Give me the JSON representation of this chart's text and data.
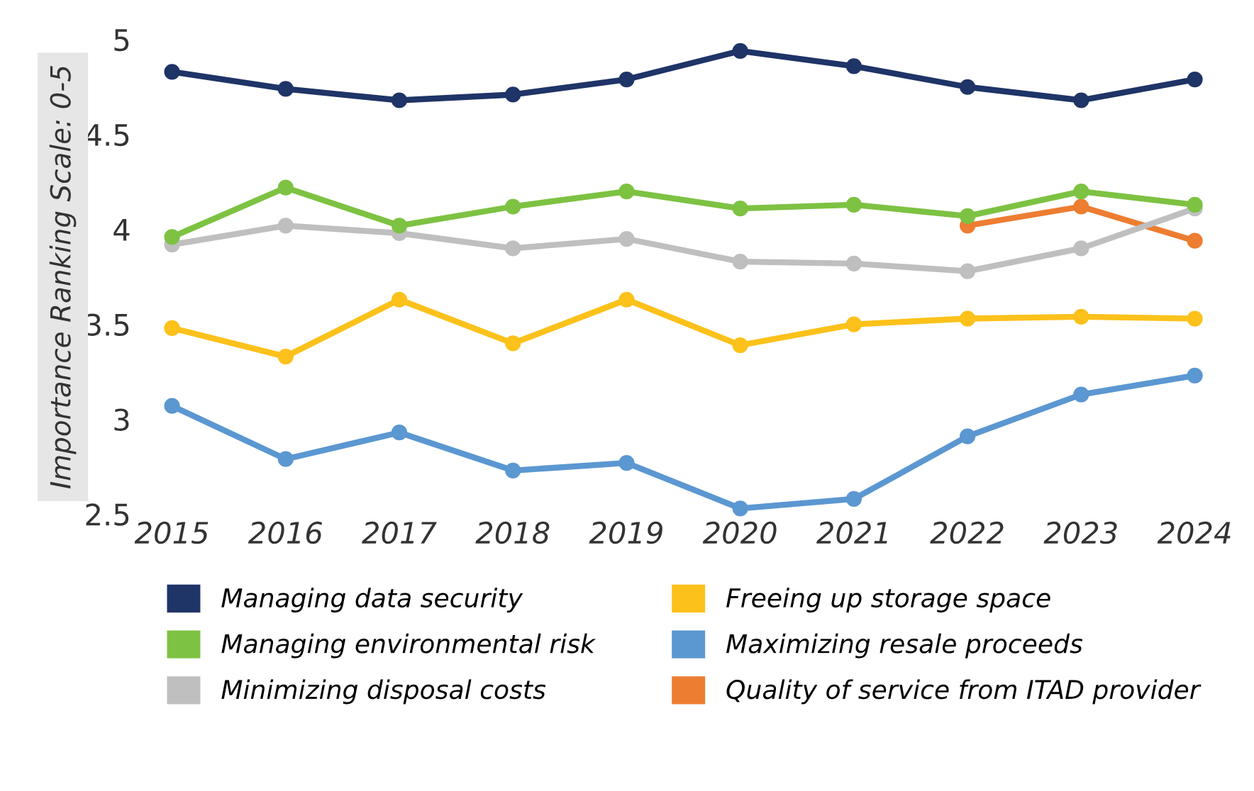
{
  "chart_data": {
    "type": "line",
    "ylabel": "Importance Ranking Scale: 0-5",
    "categories": [
      "2015",
      "2016",
      "2017",
      "2018",
      "2019",
      "2020",
      "2021",
      "2022",
      "2023",
      "2024"
    ],
    "series": [
      {
        "name": "Managing data security",
        "color": "#1f3467",
        "values": [
          4.83,
          4.74,
          4.68,
          4.71,
          4.79,
          4.94,
          4.86,
          4.75,
          4.68,
          4.79
        ]
      },
      {
        "name": "Managing environmental risk",
        "color": "#7dc242",
        "values": [
          3.96,
          4.22,
          4.02,
          4.12,
          4.2,
          4.11,
          4.13,
          4.07,
          4.2,
          4.13
        ]
      },
      {
        "name": "Minimizing disposal costs",
        "color": "#bfbfbf",
        "values": [
          3.92,
          4.02,
          3.98,
          3.9,
          3.95,
          3.83,
          3.82,
          3.78,
          3.9,
          4.11
        ]
      },
      {
        "name": "Freeing up storage space",
        "color": "#fcc11a",
        "values": [
          3.48,
          3.33,
          3.63,
          3.4,
          3.63,
          3.39,
          3.5,
          3.53,
          3.54,
          3.53
        ]
      },
      {
        "name": "Maximizing resale proceeds",
        "color": "#5b97d1",
        "values": [
          3.07,
          2.79,
          2.93,
          2.73,
          2.77,
          2.53,
          2.58,
          2.91,
          3.13,
          3.23
        ]
      },
      {
        "name": "Quality of service from ITAD provider",
        "color": "#ed7d31",
        "values": [
          null,
          null,
          null,
          null,
          null,
          null,
          null,
          4.02,
          4.12,
          3.94
        ]
      }
    ],
    "ylim": [
      2.5,
      5
    ],
    "yticks": [
      {
        "value": 2.5,
        "label": "2.5"
      },
      {
        "value": 3,
        "label": "3"
      },
      {
        "value": 3.5,
        "label": "3.5"
      },
      {
        "value": 4,
        "label": "4"
      },
      {
        "value": 4.5,
        "label": "4.5"
      },
      {
        "value": 5,
        "label": "5"
      }
    ],
    "grid": false,
    "legend": "bottom",
    "marker": "circle",
    "line_style": "solid"
  }
}
